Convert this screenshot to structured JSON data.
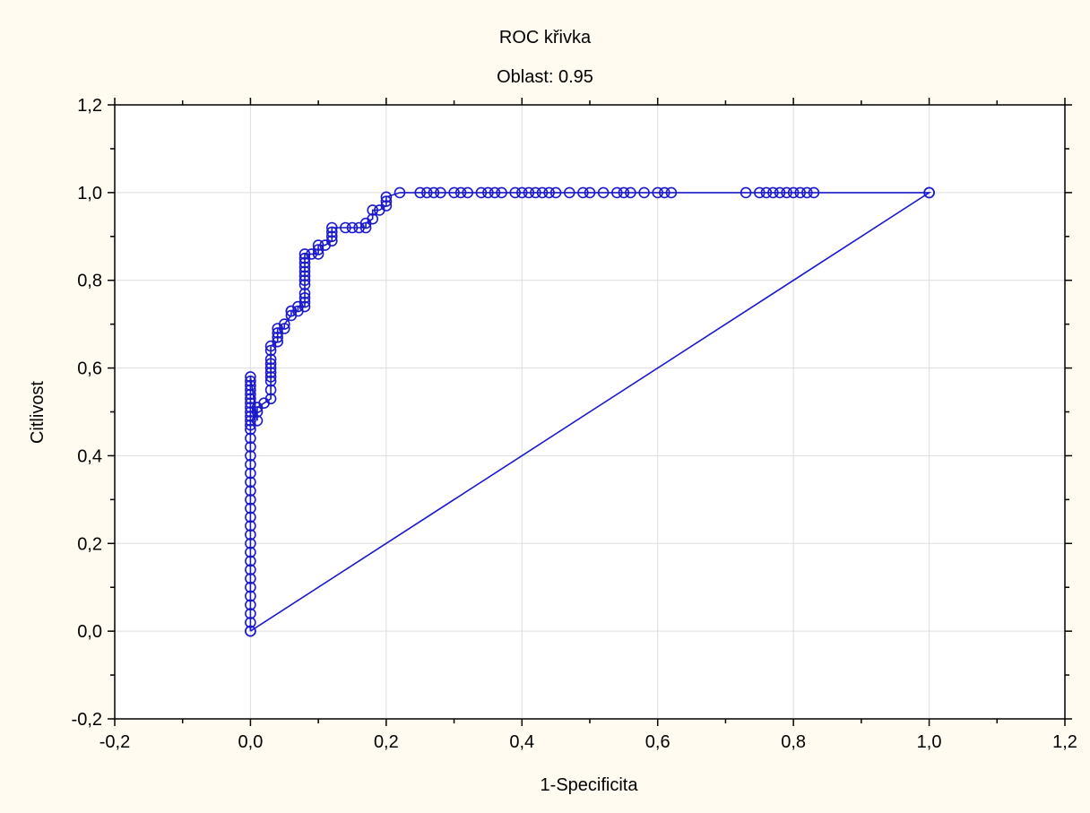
{
  "chart_data": {
    "type": "line",
    "title": "ROC křivka",
    "subtitle": "Oblast: 0.95",
    "xlabel": "1-Specificita",
    "ylabel": "Citlivost",
    "xlim": [
      -0.2,
      1.2
    ],
    "ylim": [
      -0.2,
      1.2
    ],
    "x_ticks": [
      -0.2,
      0.0,
      0.2,
      0.4,
      0.6,
      0.8,
      1.0,
      1.2
    ],
    "y_ticks": [
      -0.2,
      0.0,
      0.2,
      0.4,
      0.6,
      0.8,
      1.0,
      1.2
    ],
    "x_tick_labels": [
      "-0,2",
      "0,0",
      "0,2",
      "0,4",
      "0,6",
      "0,8",
      "1,0",
      "1,2"
    ],
    "y_tick_labels": [
      "-0,2",
      "0,0",
      "0,2",
      "0,4",
      "0,6",
      "0,8",
      "1,0",
      "1,2"
    ],
    "grid": true,
    "colors": {
      "series": "#1a1acc",
      "background": "#fffbf0",
      "plot_background": "#ffffff",
      "grid": "#dddddd"
    },
    "series": [
      {
        "x": [
          0.0,
          0.0,
          0.0,
          0.0,
          0.0,
          0.0,
          0.0,
          0.0,
          0.0,
          0.0,
          0.0,
          0.0,
          0.0,
          0.0,
          0.0,
          0.0,
          0.0,
          0.0,
          0.0,
          0.0,
          0.0,
          0.0,
          0.0,
          0.0,
          0.0,
          0.0,
          0.0,
          0.0,
          0.0,
          0.0,
          0.0,
          0.0,
          0.0,
          0.0,
          0.0,
          0.0,
          0.01,
          0.01,
          0.01,
          0.02,
          0.03,
          0.03,
          0.03,
          0.03,
          0.03,
          0.03,
          0.03,
          0.03,
          0.03,
          0.03,
          0.04,
          0.04,
          0.04,
          0.04,
          0.05,
          0.05,
          0.06,
          0.06,
          0.06,
          0.07,
          0.07,
          0.08,
          0.08,
          0.08,
          0.08,
          0.08,
          0.08,
          0.08,
          0.08,
          0.08,
          0.08,
          0.08,
          0.08,
          0.09,
          0.1,
          0.1,
          0.1,
          0.11,
          0.12,
          0.12,
          0.12,
          0.12,
          0.14,
          0.15,
          0.16,
          0.17,
          0.17,
          0.18,
          0.18,
          0.19,
          0.2,
          0.2,
          0.2,
          0.22,
          0.25,
          0.26,
          0.27,
          0.28,
          0.3,
          0.31,
          0.32,
          0.34,
          0.35,
          0.36,
          0.37,
          0.39,
          0.4,
          0.41,
          0.42,
          0.43,
          0.44,
          0.45,
          0.47,
          0.49,
          0.5,
          0.52,
          0.54,
          0.55,
          0.56,
          0.58,
          0.6,
          0.61,
          0.62,
          0.73,
          0.75,
          0.76,
          0.77,
          0.78,
          0.79,
          0.8,
          0.81,
          0.82,
          0.83,
          1.0,
          1.0,
          0.0
        ],
        "y": [
          0.0,
          0.02,
          0.04,
          0.06,
          0.08,
          0.1,
          0.12,
          0.14,
          0.16,
          0.18,
          0.2,
          0.22,
          0.24,
          0.26,
          0.28,
          0.3,
          0.32,
          0.34,
          0.36,
          0.38,
          0.4,
          0.42,
          0.44,
          0.46,
          0.47,
          0.48,
          0.49,
          0.5,
          0.51,
          0.52,
          0.53,
          0.54,
          0.55,
          0.56,
          0.57,
          0.58,
          0.48,
          0.5,
          0.51,
          0.52,
          0.53,
          0.55,
          0.57,
          0.58,
          0.59,
          0.6,
          0.61,
          0.62,
          0.64,
          0.65,
          0.66,
          0.67,
          0.68,
          0.69,
          0.69,
          0.7,
          0.72,
          0.73,
          0.73,
          0.73,
          0.74,
          0.74,
          0.75,
          0.76,
          0.77,
          0.79,
          0.8,
          0.81,
          0.82,
          0.83,
          0.84,
          0.85,
          0.86,
          0.86,
          0.86,
          0.87,
          0.88,
          0.88,
          0.89,
          0.9,
          0.91,
          0.92,
          0.92,
          0.92,
          0.92,
          0.92,
          0.93,
          0.94,
          0.96,
          0.96,
          0.97,
          0.98,
          0.99,
          1.0,
          1.0,
          1.0,
          1.0,
          1.0,
          1.0,
          1.0,
          1.0,
          1.0,
          1.0,
          1.0,
          1.0,
          1.0,
          1.0,
          1.0,
          1.0,
          1.0,
          1.0,
          1.0,
          1.0,
          1.0,
          1.0,
          1.0,
          1.0,
          1.0,
          1.0,
          1.0,
          1.0,
          1.0,
          1.0,
          1.0,
          1.0,
          1.0,
          1.0,
          1.0,
          1.0,
          1.0,
          1.0,
          1.0,
          1.0,
          1.0,
          1.0,
          0.0
        ]
      }
    ]
  }
}
